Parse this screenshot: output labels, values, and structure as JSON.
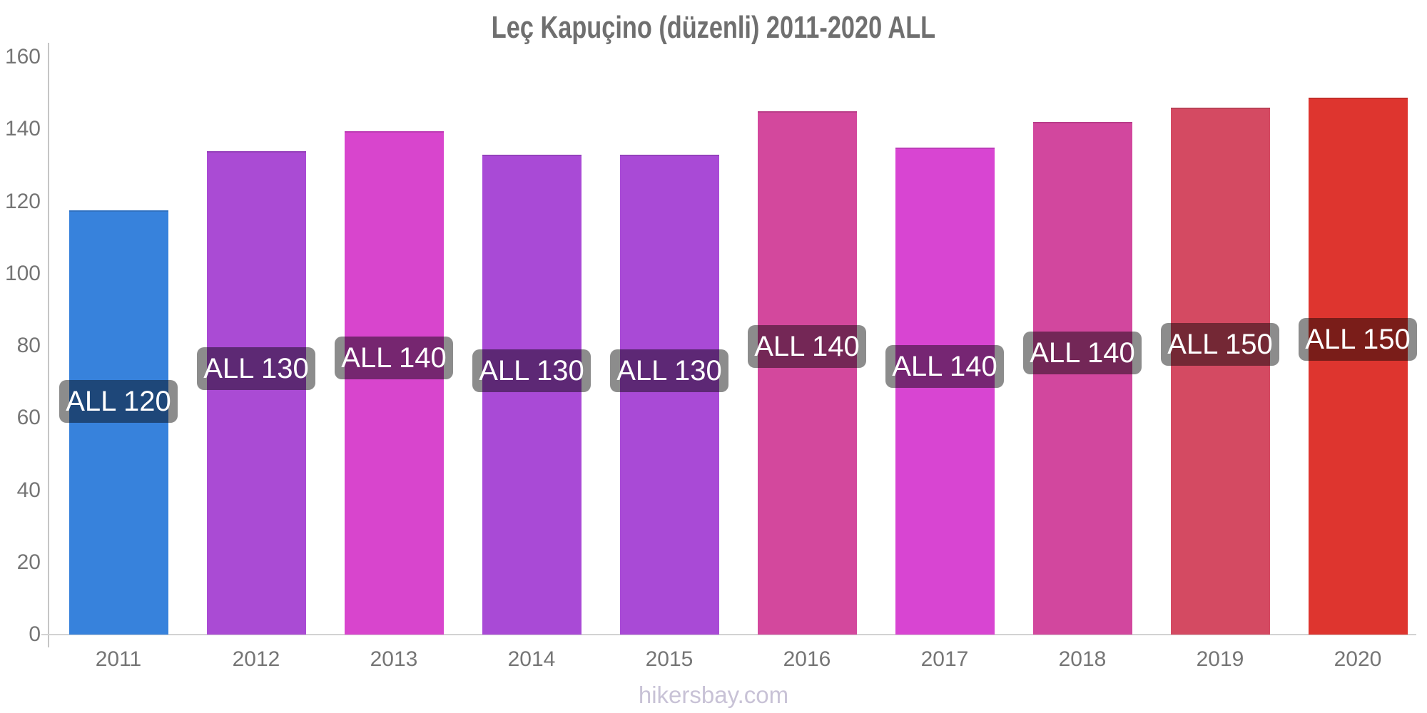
{
  "title": "Leç Kapuçino (düzenli) 2011-2020 ALL",
  "footer": {
    "text": "hikersbay.com"
  },
  "chart_data": {
    "type": "bar",
    "title": "Leç Kapuçino (düzenli) 2011-2020 ALL",
    "categories": [
      "2011",
      "2012",
      "2013",
      "2014",
      "2015",
      "2016",
      "2017",
      "2018",
      "2019",
      "2020"
    ],
    "values": [
      117.5,
      134,
      139.5,
      133,
      133,
      145,
      135,
      142,
      146,
      148.8
    ],
    "bar_labels": [
      "ALL 120",
      "ALL 130",
      "ALL 140",
      "ALL 130",
      "ALL 130",
      "ALL 140",
      "ALL 140",
      "ALL 140",
      "ALL 150",
      "ALL 150"
    ],
    "bar_colors": [
      "#3782dc",
      "#aa4bd4",
      "#d845cd",
      "#a94ad6",
      "#a94ad6",
      "#d3489d",
      "#d845d2",
      "#d2479e",
      "#d44a62",
      "#de352f"
    ],
    "xlabel": "",
    "ylabel": "",
    "ylim": [
      0,
      160
    ],
    "yticks": [
      0,
      20,
      40,
      60,
      80,
      100,
      120,
      140,
      160
    ],
    "grid": false,
    "legend": false,
    "colors": {
      "title": "#6f6f6f",
      "tick_labels": "#757575",
      "axis_line": "#c5c5c5",
      "bar_label_text": "#ffffff",
      "bar_label_box": "rgba(0,0,0,0.45)",
      "footer": "#c8c2d6"
    }
  }
}
